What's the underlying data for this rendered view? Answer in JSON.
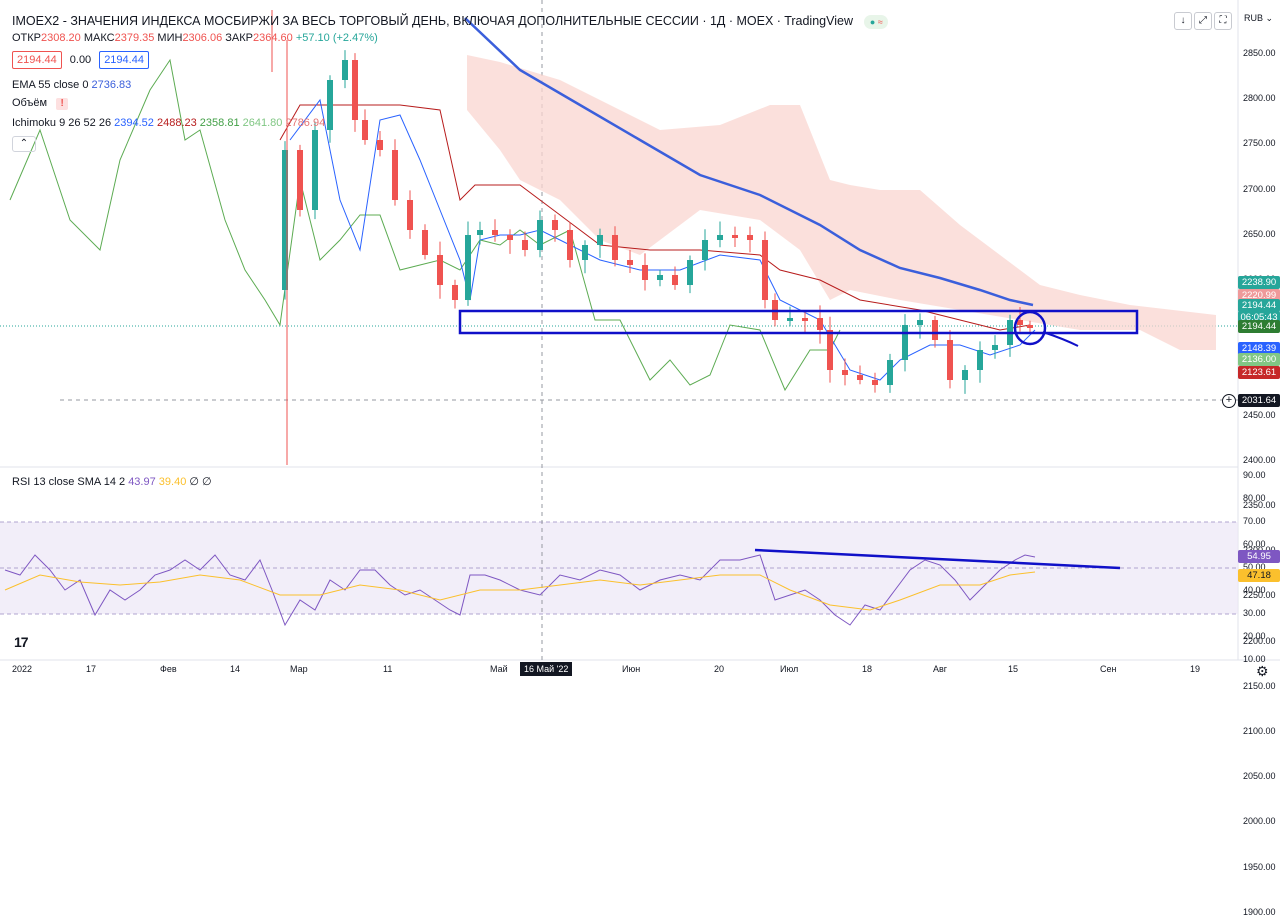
{
  "header": {
    "title": "IMOEX2 - ЗНАЧЕНИЯ ИНДЕКСА МОСБИРЖИ ЗА ВЕСЬ ТОРГОВЫЙ ДЕНЬ, ВКЛЮЧАЯ ДОПОЛНИТЕЛЬНЫЕ СЕССИИ · 1Д · MOEX · TradingView",
    "ohlc": {
      "open_label": "ОТКР",
      "open": "2308.20",
      "high_label": "МАКС",
      "high": "2379.35",
      "low_label": "МИН",
      "low": "2306.06",
      "close_label": "ЗАКР",
      "close": "2364.60",
      "change": "+57.10 (+2.47%)"
    },
    "sell_price": "2194.44",
    "spread": "0.00",
    "buy_price": "2194.44",
    "currency": "RUB"
  },
  "indicators": {
    "ema_label": "EMA 55 close 0",
    "ema_value": "2736.83",
    "volume_label": "Объём",
    "ichimoku_label": "Ichimoku 9 26 52 26",
    "ichimoku_values": [
      "2394.52",
      "2488.23",
      "2358.81",
      "2641.80",
      "2786.94"
    ],
    "rsi_label": "RSI 13 close SMA 14 2",
    "rsi_values": [
      "43.97",
      "39.40",
      "∅",
      "∅"
    ]
  },
  "price_axis": {
    "ticks": [
      "2850.00",
      "2800.00",
      "2750.00",
      "2700.00",
      "2650.00",
      "2600.00",
      "2550.00",
      "2500.00",
      "2450.00",
      "2400.00",
      "2350.00",
      "2300.00",
      "2250.00",
      "2200.00",
      "2150.00",
      "2100.00",
      "2050.00",
      "2000.00",
      "1950.00",
      "1900.00"
    ],
    "badges": [
      {
        "text": "2238.90",
        "color": "#26a69a"
      },
      {
        "text": "2220.99",
        "color": "#ef9a9a"
      },
      {
        "text": "2194.44",
        "color": "#26a69a"
      },
      {
        "text": "06:05:43",
        "color": "#26a69a"
      },
      {
        "text": "2194.44",
        "color": "#2e7d32"
      },
      {
        "text": "2148.39",
        "color": "#2962ff"
      },
      {
        "text": "2136.00",
        "color": "#81c784"
      },
      {
        "text": "2123.61",
        "color": "#c62828"
      },
      {
        "text": "2031.64",
        "color": "#131722"
      }
    ]
  },
  "rsi_axis": {
    "ticks": [
      "90.00",
      "80.00",
      "70.00",
      "60.00",
      "50.00",
      "40.00",
      "30.00",
      "20.00",
      "10.00"
    ],
    "badges": [
      {
        "text": "54.95",
        "color": "#7e57c2"
      },
      {
        "text": "47.18",
        "color": "#fbc02d"
      }
    ]
  },
  "time_axis": {
    "labels": [
      "2022",
      "17",
      "Фев",
      "14",
      "Мар",
      "11",
      "Май",
      "16 Май '22",
      "Июн",
      "20",
      "Июл",
      "18",
      "Авг",
      "15",
      "Сен",
      "19"
    ],
    "highlighted": "16 Май '22"
  },
  "buttons": {
    "down": "↓",
    "fullscreen": "⤢",
    "snapshot": "⛶"
  },
  "logo_text": "17",
  "colors": {
    "up": "#26a69a",
    "down": "#ef5350",
    "ema": "#3b5fdb",
    "drawing": "#1010c8",
    "cloud": "#f9d6d0",
    "rsi_band": "#ede7f6"
  },
  "chart_data": {
    "type": "candlestick",
    "price_range": [
      1875,
      2875
    ],
    "time_range": [
      "2022-01-01",
      "2022-09-30"
    ],
    "horizontal_level": 2031.64,
    "current_price": 2194.44,
    "rsi_range": [
      5,
      95
    ],
    "rsi_levels": [
      30,
      50,
      70
    ]
  }
}
